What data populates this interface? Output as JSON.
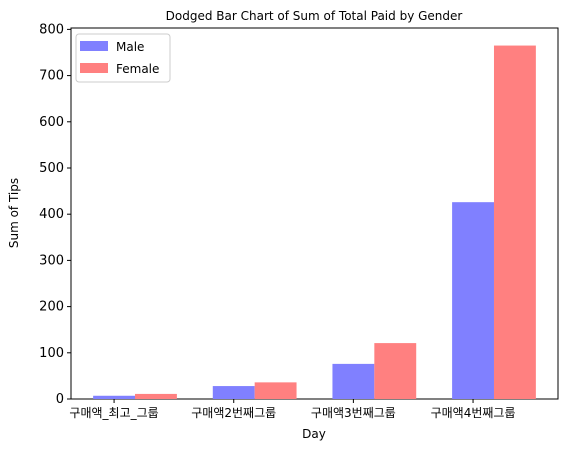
{
  "chart_data": {
    "type": "bar",
    "title": "Dodged Bar Chart of Sum of Total Paid by Gender",
    "xlabel": "Day",
    "ylabel": "Sum of Tips",
    "categories": [
      "구매액_최고_그룹",
      "구매액2번째그룹",
      "구매액3번째그룹",
      "구매액4번째그룹"
    ],
    "series": [
      {
        "name": "Male",
        "color": "#8080ff",
        "values": [
          7,
          28,
          76,
          426
        ]
      },
      {
        "name": "Female",
        "color": "#ff8080",
        "values": [
          11,
          36,
          121,
          765
        ]
      }
    ],
    "ylim": [
      0,
      803
    ],
    "yticks": [
      0,
      100,
      200,
      300,
      400,
      500,
      600,
      700,
      800
    ],
    "legend": "top-left",
    "grid": false
  }
}
